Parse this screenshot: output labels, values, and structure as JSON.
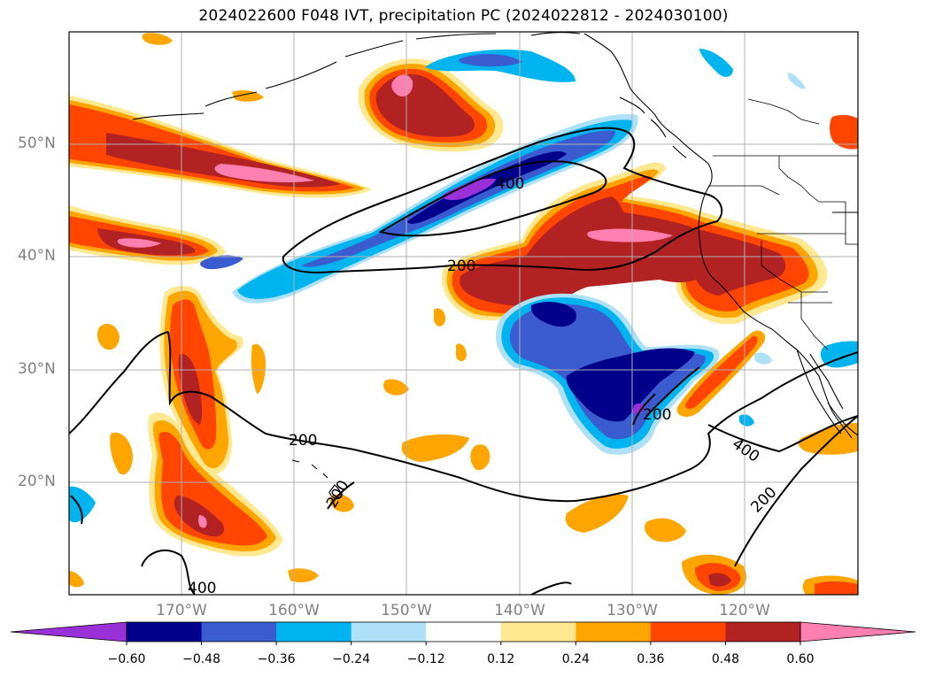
{
  "title": "2024022600 F048 IVT, precipitation PC (2024022812 - 2024030100)",
  "map": {
    "projection": "plate-carree",
    "lon_range": [
      -180,
      -110
    ],
    "lat_range": [
      10,
      60
    ],
    "lat_labels": [
      "50°N",
      "40°N",
      "30°N",
      "20°N"
    ],
    "lon_labels": [
      "170°W",
      "160°W",
      "150°W",
      "140°W",
      "130°W",
      "120°W"
    ],
    "gridlines": true,
    "contour_labels": [
      "400",
      "200",
      "200",
      "200",
      "400",
      "200",
      "200",
      "400"
    ]
  },
  "colorbar": {
    "ticks": [
      "−0.60",
      "−0.48",
      "−0.36",
      "−0.24",
      "−0.12",
      "0.12",
      "0.24",
      "0.36",
      "0.48",
      "0.60"
    ],
    "colors": [
      "#9a30d8",
      "#00008b",
      "#3a5cd0",
      "#00b4f0",
      "#aee0f8",
      "#ffffff",
      "#ffe890",
      "#ffa500",
      "#ff4500",
      "#b22222",
      "#ff80b0",
      "#ff80b0"
    ],
    "extend": "both"
  }
}
